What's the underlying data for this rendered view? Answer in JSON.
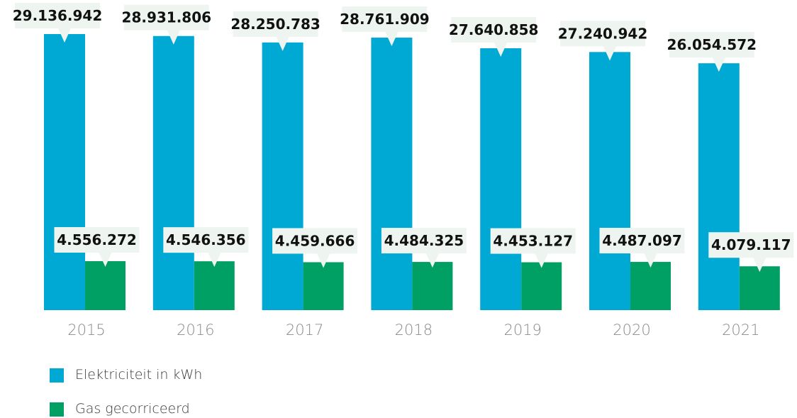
{
  "chart_data": {
    "type": "bar",
    "categories": [
      "2015",
      "2016",
      "2017",
      "2018",
      "2019",
      "2020",
      "2021"
    ],
    "series": [
      {
        "name": "Elektriciteit in kWh",
        "color": "#00a9d3",
        "values": [
          29136942,
          28931806,
          28250783,
          28761909,
          27640858,
          27240942,
          26054572
        ],
        "labels": [
          "29.136.942",
          "28.931.806",
          "28.250.783",
          "28.761.909",
          "27.640.858",
          "27.240.942",
          "26.054.572"
        ]
      },
      {
        "name": "Gas gecorriceerd",
        "color": "#00a064",
        "values": [
          4556272,
          4546356,
          4459666,
          4484325,
          4453127,
          4487097,
          4079117
        ],
        "labels": [
          "4.556.272",
          "4.546.356",
          "4.459.666",
          "4.484.325",
          "4.453.127",
          "4.487.097",
          "4.079.117"
        ]
      }
    ],
    "label_box_color": "#eef5f1",
    "grid": false,
    "legend_position": "bottom-left"
  }
}
